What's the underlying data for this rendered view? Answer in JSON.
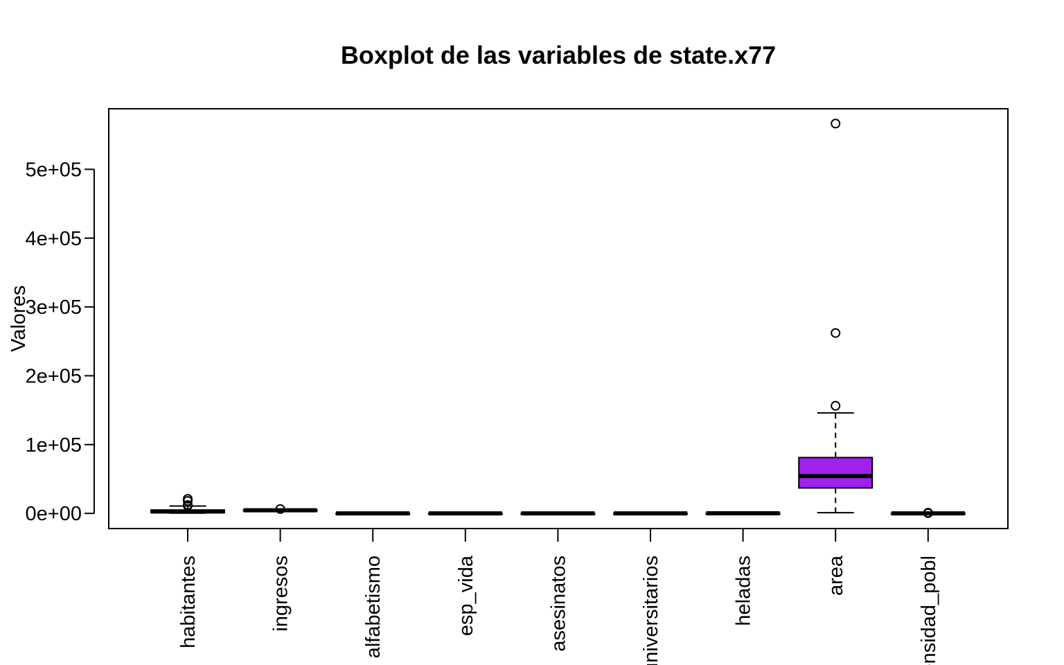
{
  "chart_data": {
    "type": "boxplot",
    "title": "Boxplot de las variables de state.x77",
    "xlabel": "",
    "ylabel": "Valores",
    "ylim": [
      -22000,
      588000
    ],
    "yticks": [
      0,
      100000,
      200000,
      300000,
      400000,
      500000
    ],
    "ytick_labels": [
      "0e+00",
      "1e+05",
      "2e+05",
      "3e+05",
      "4e+05",
      "5e+05"
    ],
    "grid": false,
    "legend": "none",
    "box_color": "#a020f0",
    "categories": [
      "habitantes",
      "ingresos",
      "alfabetismo",
      "esp_vida",
      "asesinatos",
      "universitarios",
      "heladas",
      "area",
      "densidad_pobl"
    ],
    "boxes": [
      {
        "category": "habitantes",
        "whisker_low": 365,
        "q1": 1079,
        "median": 2838,
        "q3": 4968,
        "whisker_high": 10735,
        "outliers": [
          21198,
          18076,
          12237,
          11197,
          11860
        ]
      },
      {
        "category": "ingresos",
        "whisker_low": 3098,
        "q1": 3993,
        "median": 4519,
        "q3": 4814,
        "whisker_high": 5348,
        "outliers": [
          6315
        ]
      },
      {
        "category": "alfabetismo",
        "whisker_low": 0.5,
        "q1": 0.6,
        "median": 0.95,
        "q3": 1.6,
        "whisker_high": 2.8,
        "outliers": []
      },
      {
        "category": "esp_vida",
        "whisker_low": 67.96,
        "q1": 70.12,
        "median": 70.68,
        "q3": 71.89,
        "whisker_high": 73.6,
        "outliers": []
      },
      {
        "category": "asesinatos",
        "whisker_low": 1.4,
        "q1": 4.3,
        "median": 6.85,
        "q3": 10.7,
        "whisker_high": 15.1,
        "outliers": []
      },
      {
        "category": "universitarios",
        "whisker_low": 37.8,
        "q1": 48.05,
        "median": 53.25,
        "q3": 59.15,
        "whisker_high": 67.3,
        "outliers": []
      },
      {
        "category": "heladas",
        "whisker_low": 0,
        "q1": 66.2,
        "median": 114.5,
        "q3": 139.8,
        "whisker_high": 188,
        "outliers": []
      },
      {
        "category": "area",
        "whisker_low": 1049,
        "q1": 36985,
        "median": 54277,
        "q3": 81163,
        "whisker_high": 146001,
        "outliers": [
          566432,
          262134,
          156361
        ]
      },
      {
        "category": "densidad_pobl",
        "whisker_low": 0.6,
        "q1": 32,
        "median": 73,
        "q3": 136,
        "whisker_high": 275,
        "outliers": [
          975,
          586,
          624,
          416
        ]
      }
    ]
  }
}
